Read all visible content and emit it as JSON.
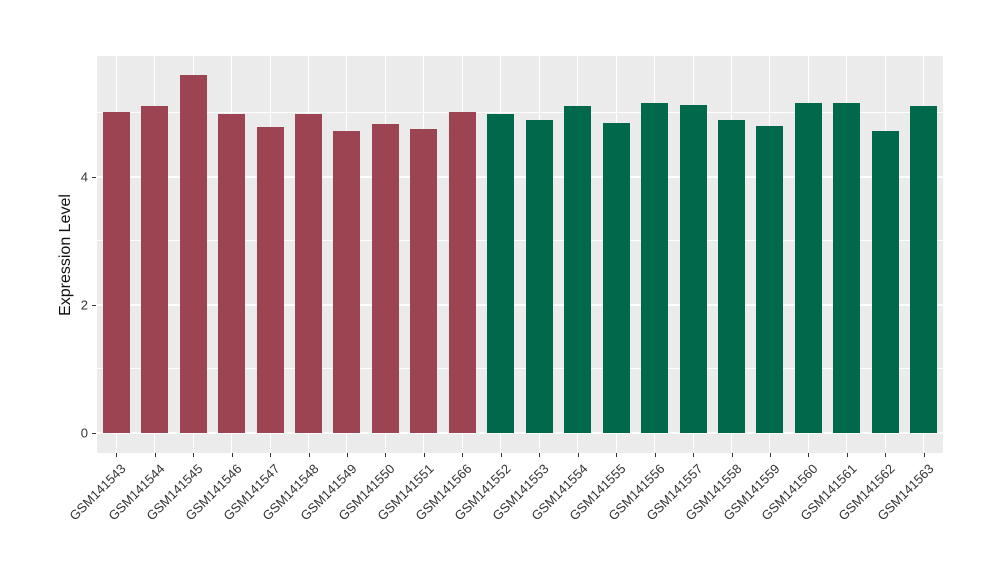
{
  "chart_data": {
    "type": "bar",
    "title": "",
    "xlabel": "",
    "ylabel": "Expression Level",
    "legend": "none",
    "grid": true,
    "panel_bg": "#EBEBEB",
    "grid_color": "#FFFFFF",
    "tick_color": "#333333",
    "axis_text_color": "#333333",
    "group_colors": {
      "left_group_red": "#9C4452",
      "right_group_green": "#01694B"
    },
    "categories": [
      "GSM141543",
      "GSM141544",
      "GSM141545",
      "GSM141546",
      "GSM141547",
      "GSM141548",
      "GSM141549",
      "GSM141550",
      "GSM141551",
      "GSM141566",
      "GSM141552",
      "GSM141553",
      "GSM141554",
      "GSM141555",
      "GSM141556",
      "GSM141557",
      "GSM141558",
      "GSM141559",
      "GSM141560",
      "GSM141561",
      "GSM141562",
      "GSM141563"
    ],
    "values": [
      5.01,
      5.11,
      5.6,
      4.99,
      4.78,
      4.98,
      4.71,
      4.82,
      4.75,
      5.01,
      4.98,
      4.89,
      5.11,
      4.84,
      5.15,
      5.12,
      4.89,
      4.8,
      5.15,
      5.15,
      4.71,
      5.11
    ],
    "bar_colors": [
      "#9C4452",
      "#9C4452",
      "#9C4452",
      "#9C4452",
      "#9C4452",
      "#9C4452",
      "#9C4452",
      "#9C4452",
      "#9C4452",
      "#9C4452",
      "#01694B",
      "#01694B",
      "#01694B",
      "#01694B",
      "#01694B",
      "#01694B",
      "#01694B",
      "#01694B",
      "#01694B",
      "#01694B",
      "#01694B",
      "#01694B"
    ],
    "y_ticks": [
      0,
      2,
      4
    ],
    "y_minor_ticks": [
      1,
      3,
      5
    ],
    "ylim": [
      -0.32,
      5.89
    ],
    "x_label_angle": 45
  }
}
